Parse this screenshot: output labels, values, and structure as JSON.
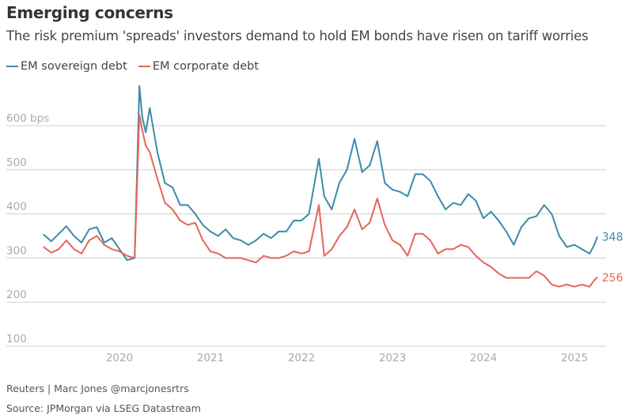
{
  "header": {
    "title": "Emerging concerns",
    "subtitle": "The risk premium 'spreads' investors demand to hold EM bonds have risen on tariff worries"
  },
  "footer": {
    "credit": "Reuters | Marc Jones @marcjonesrtrs",
    "source": "Source: JPMorgan via LSEG Datastream"
  },
  "chart_data": {
    "type": "line",
    "title": "Emerging concerns",
    "ylabel": "",
    "y_unit": "bps",
    "ylim": [
      100,
      700
    ],
    "y_ticks": [
      "100",
      "200",
      "300",
      "400",
      "500",
      "600 bps"
    ],
    "y_tick_values": [
      100,
      200,
      300,
      400,
      500,
      600
    ],
    "x_ticks": [
      "2020",
      "2021",
      "2022",
      "2023",
      "2024",
      "2025"
    ],
    "grid": true,
    "legend_position": "top-left",
    "series": [
      {
        "name": "EM sovereign debt",
        "color": "#3a8cab",
        "end_label": "348",
        "points": [
          [
            "2019-03-01",
            353
          ],
          [
            "2019-04-01",
            338
          ],
          [
            "2019-05-01",
            355
          ],
          [
            "2019-06-01",
            372
          ],
          [
            "2019-07-01",
            350
          ],
          [
            "2019-08-01",
            335
          ],
          [
            "2019-09-01",
            365
          ],
          [
            "2019-10-01",
            370
          ],
          [
            "2019-11-01",
            335
          ],
          [
            "2019-12-01",
            345
          ],
          [
            "2020-01-01",
            320
          ],
          [
            "2020-02-01",
            295
          ],
          [
            "2020-03-01",
            300
          ],
          [
            "2020-03-20",
            690
          ],
          [
            "2020-04-01",
            620
          ],
          [
            "2020-04-15",
            585
          ],
          [
            "2020-05-01",
            640
          ],
          [
            "2020-06-01",
            540
          ],
          [
            "2020-07-01",
            470
          ],
          [
            "2020-08-01",
            460
          ],
          [
            "2020-09-01",
            420
          ],
          [
            "2020-10-01",
            420
          ],
          [
            "2020-11-01",
            400
          ],
          [
            "2020-12-01",
            375
          ],
          [
            "2021-01-01",
            360
          ],
          [
            "2021-02-01",
            350
          ],
          [
            "2021-03-01",
            365
          ],
          [
            "2021-04-01",
            345
          ],
          [
            "2021-05-01",
            340
          ],
          [
            "2021-06-01",
            330
          ],
          [
            "2021-07-01",
            340
          ],
          [
            "2021-08-01",
            355
          ],
          [
            "2021-09-01",
            345
          ],
          [
            "2021-10-01",
            360
          ],
          [
            "2021-11-01",
            360
          ],
          [
            "2021-12-01",
            385
          ],
          [
            "2022-01-01",
            385
          ],
          [
            "2022-02-01",
            400
          ],
          [
            "2022-03-10",
            525
          ],
          [
            "2022-04-01",
            440
          ],
          [
            "2022-05-01",
            410
          ],
          [
            "2022-06-01",
            470
          ],
          [
            "2022-07-01",
            500
          ],
          [
            "2022-08-01",
            570
          ],
          [
            "2022-09-01",
            495
          ],
          [
            "2022-10-01",
            510
          ],
          [
            "2022-11-01",
            565
          ],
          [
            "2022-12-01",
            470
          ],
          [
            "2023-01-01",
            455
          ],
          [
            "2023-02-01",
            450
          ],
          [
            "2023-03-01",
            440
          ],
          [
            "2023-04-01",
            490
          ],
          [
            "2023-05-01",
            490
          ],
          [
            "2023-06-01",
            475
          ],
          [
            "2023-07-01",
            440
          ],
          [
            "2023-08-01",
            410
          ],
          [
            "2023-09-01",
            425
          ],
          [
            "2023-10-01",
            420
          ],
          [
            "2023-11-01",
            445
          ],
          [
            "2023-12-01",
            430
          ],
          [
            "2024-01-01",
            390
          ],
          [
            "2024-02-01",
            405
          ],
          [
            "2024-03-01",
            385
          ],
          [
            "2024-04-01",
            360
          ],
          [
            "2024-05-01",
            330
          ],
          [
            "2024-06-01",
            370
          ],
          [
            "2024-07-01",
            390
          ],
          [
            "2024-08-01",
            395
          ],
          [
            "2024-09-01",
            420
          ],
          [
            "2024-10-01",
            400
          ],
          [
            "2024-11-01",
            350
          ],
          [
            "2024-12-01",
            325
          ],
          [
            "2025-01-01",
            330
          ],
          [
            "2025-02-01",
            320
          ],
          [
            "2025-03-01",
            310
          ],
          [
            "2025-03-20",
            330
          ],
          [
            "2025-04-01",
            348
          ]
        ]
      },
      {
        "name": "EM corporate debt",
        "color": "#e5665a",
        "end_label": "256",
        "points": [
          [
            "2019-03-01",
            325
          ],
          [
            "2019-04-01",
            312
          ],
          [
            "2019-05-01",
            320
          ],
          [
            "2019-06-01",
            340
          ],
          [
            "2019-07-01",
            320
          ],
          [
            "2019-08-01",
            310
          ],
          [
            "2019-09-01",
            340
          ],
          [
            "2019-10-01",
            350
          ],
          [
            "2019-11-01",
            330
          ],
          [
            "2019-12-01",
            320
          ],
          [
            "2020-01-01",
            315
          ],
          [
            "2020-02-01",
            305
          ],
          [
            "2020-03-01",
            300
          ],
          [
            "2020-03-20",
            625
          ],
          [
            "2020-04-01",
            590
          ],
          [
            "2020-04-15",
            555
          ],
          [
            "2020-05-01",
            540
          ],
          [
            "2020-06-01",
            480
          ],
          [
            "2020-07-01",
            425
          ],
          [
            "2020-08-01",
            410
          ],
          [
            "2020-09-01",
            385
          ],
          [
            "2020-10-01",
            375
          ],
          [
            "2020-11-01",
            380
          ],
          [
            "2020-12-01",
            340
          ],
          [
            "2021-01-01",
            315
          ],
          [
            "2021-02-01",
            310
          ],
          [
            "2021-03-01",
            300
          ],
          [
            "2021-04-01",
            300
          ],
          [
            "2021-05-01",
            300
          ],
          [
            "2021-06-01",
            295
          ],
          [
            "2021-07-01",
            290
          ],
          [
            "2021-08-01",
            305
          ],
          [
            "2021-09-01",
            300
          ],
          [
            "2021-10-01",
            300
          ],
          [
            "2021-11-01",
            305
          ],
          [
            "2021-12-01",
            315
          ],
          [
            "2022-01-01",
            310
          ],
          [
            "2022-02-01",
            315
          ],
          [
            "2022-03-10",
            420
          ],
          [
            "2022-04-01",
            305
          ],
          [
            "2022-05-01",
            320
          ],
          [
            "2022-06-01",
            350
          ],
          [
            "2022-07-01",
            370
          ],
          [
            "2022-08-01",
            410
          ],
          [
            "2022-09-01",
            365
          ],
          [
            "2022-10-01",
            380
          ],
          [
            "2022-11-01",
            435
          ],
          [
            "2022-12-01",
            375
          ],
          [
            "2023-01-01",
            340
          ],
          [
            "2023-02-01",
            330
          ],
          [
            "2023-03-01",
            305
          ],
          [
            "2023-04-01",
            355
          ],
          [
            "2023-05-01",
            355
          ],
          [
            "2023-06-01",
            340
          ],
          [
            "2023-07-01",
            310
          ],
          [
            "2023-08-01",
            320
          ],
          [
            "2023-09-01",
            320
          ],
          [
            "2023-10-01",
            330
          ],
          [
            "2023-11-01",
            325
          ],
          [
            "2023-12-01",
            305
          ],
          [
            "2024-01-01",
            290
          ],
          [
            "2024-02-01",
            280
          ],
          [
            "2024-03-01",
            265
          ],
          [
            "2024-04-01",
            255
          ],
          [
            "2024-05-01",
            255
          ],
          [
            "2024-06-01",
            255
          ],
          [
            "2024-07-01",
            255
          ],
          [
            "2024-08-01",
            270
          ],
          [
            "2024-09-01",
            260
          ],
          [
            "2024-10-01",
            240
          ],
          [
            "2024-11-01",
            235
          ],
          [
            "2024-12-01",
            240
          ],
          [
            "2025-01-01",
            235
          ],
          [
            "2025-02-01",
            240
          ],
          [
            "2025-03-01",
            235
          ],
          [
            "2025-03-20",
            250
          ],
          [
            "2025-04-01",
            256
          ]
        ]
      }
    ]
  }
}
